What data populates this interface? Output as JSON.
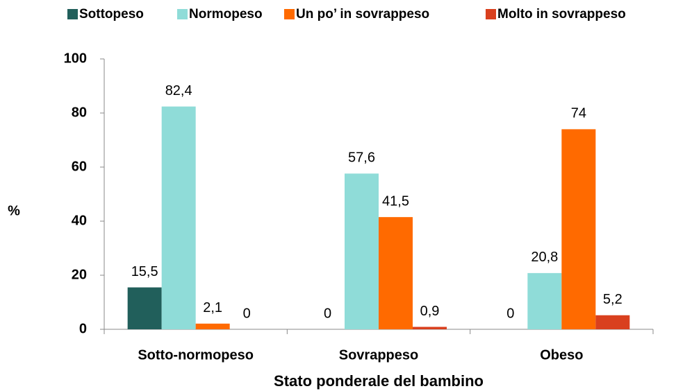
{
  "chart_data": {
    "type": "bar",
    "x_label": "Stato ponderale  del bambino",
    "y_label": "%",
    "categories": [
      "Sotto-normopeso",
      "Sovrappeso",
      "Obeso"
    ],
    "series": [
      {
        "name": "Sottopeso",
        "color": "#215f5b",
        "values": [
          15.5,
          0,
          0
        ],
        "value_labels": [
          "15,5",
          "0",
          "0"
        ]
      },
      {
        "name": "Normopeso",
        "color": "#8fdcd8",
        "values": [
          82.4,
          57.6,
          20.8
        ],
        "value_labels": [
          "82,4",
          "57,6",
          "20,8"
        ]
      },
      {
        "name": "Un po’ in sovrappeso",
        "color": "#ff6a00",
        "values": [
          2.1,
          41.5,
          74
        ],
        "value_labels": [
          "2,1",
          "41,5",
          "74"
        ]
      },
      {
        "name": "Molto in sovrappeso",
        "color": "#d9401e",
        "values": [
          0,
          0.9,
          5.2
        ],
        "value_labels": [
          "0",
          "0,9",
          "5,2"
        ]
      }
    ],
    "ylim": [
      0,
      100
    ],
    "yticks": [
      0,
      20,
      40,
      60,
      80,
      100
    ],
    "grid": false,
    "legend": "top"
  }
}
